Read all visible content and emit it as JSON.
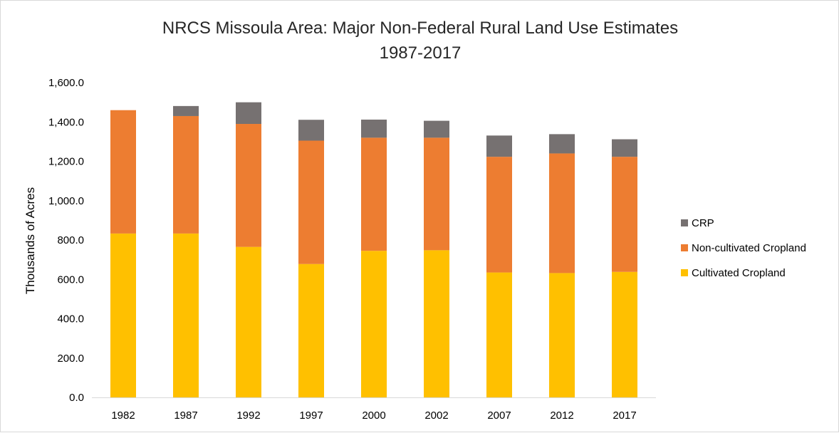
{
  "chart_data": {
    "type": "bar",
    "stacked": true,
    "title": "NRCS Missoula Area: Major Non-Federal Rural Land Use Estimates",
    "subtitle": "1987-2017",
    "xlabel": "",
    "ylabel": "Thousands of Acres",
    "ylim": [
      0,
      1600
    ],
    "yticks": [
      "0.0",
      "200.0",
      "400.0",
      "600.0",
      "800.0",
      "1,000.0",
      "1,200.0",
      "1,400.0",
      "1,600.0"
    ],
    "ytick_values": [
      0,
      200,
      400,
      600,
      800,
      1000,
      1200,
      1400,
      1600
    ],
    "grid": false,
    "legend_position": "right",
    "categories": [
      "1982",
      "1987",
      "1992",
      "1997",
      "2000",
      "2002",
      "2007",
      "2012",
      "2017"
    ],
    "series": [
      {
        "name": "Cultivated Cropland",
        "color": "#FFC000",
        "values": [
          833,
          833,
          765,
          678,
          745,
          748,
          635,
          632,
          638
        ]
      },
      {
        "name": "Non-cultivated Cropland",
        "color": "#ED7D31",
        "values": [
          627,
          597,
          625,
          627,
          575,
          572,
          588,
          608,
          585
        ]
      },
      {
        "name": "CRP",
        "color": "#767171",
        "values": [
          0,
          51,
          110,
          106,
          92,
          86,
          108,
          98,
          89
        ]
      }
    ],
    "legend_order": [
      "CRP",
      "Non-cultivated Cropland",
      "Cultivated Cropland"
    ]
  }
}
